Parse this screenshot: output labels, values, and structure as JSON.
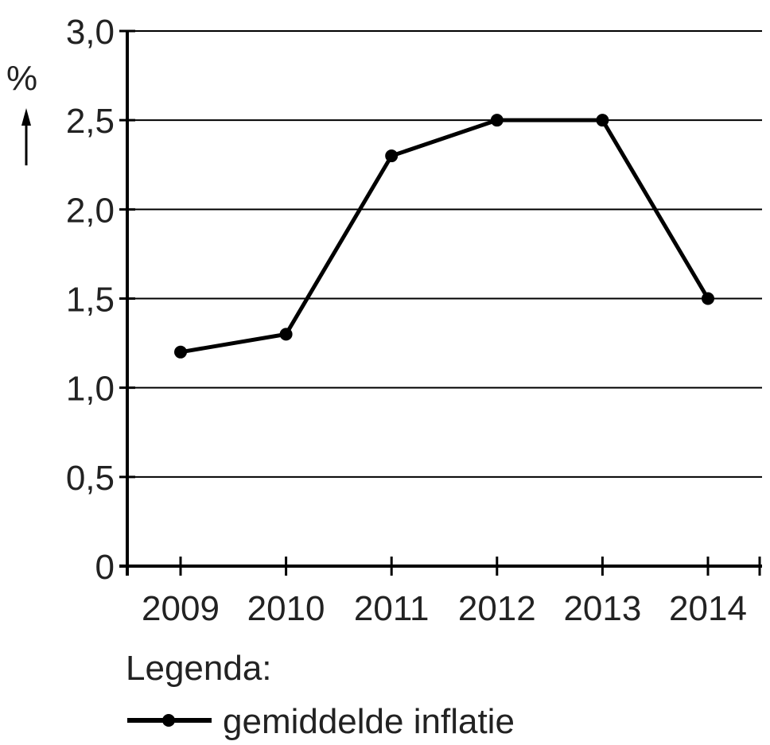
{
  "chart_data": {
    "type": "line",
    "title": "",
    "xlabel": "",
    "ylabel": "%",
    "categories": [
      "2009",
      "2010",
      "2011",
      "2012",
      "2013",
      "2014"
    ],
    "series": [
      {
        "name": "gemiddelde inflatie",
        "values": [
          1.2,
          1.3,
          2.3,
          2.5,
          2.5,
          1.5
        ]
      }
    ],
    "ylim": [
      0,
      3.0
    ],
    "yticks": [
      "0",
      "0,5",
      "1,0",
      "1,5",
      "2,0",
      "2,5",
      "3,0"
    ],
    "grid": true,
    "legend_position": "bottom-left"
  },
  "axis": {
    "y_unit": "%"
  },
  "legend": {
    "title": "Legenda:",
    "items": [
      {
        "label": "gemiddelde inflatie"
      }
    ]
  },
  "colors": {
    "line": "#000000",
    "grid": "#000000",
    "text": "#222222"
  }
}
